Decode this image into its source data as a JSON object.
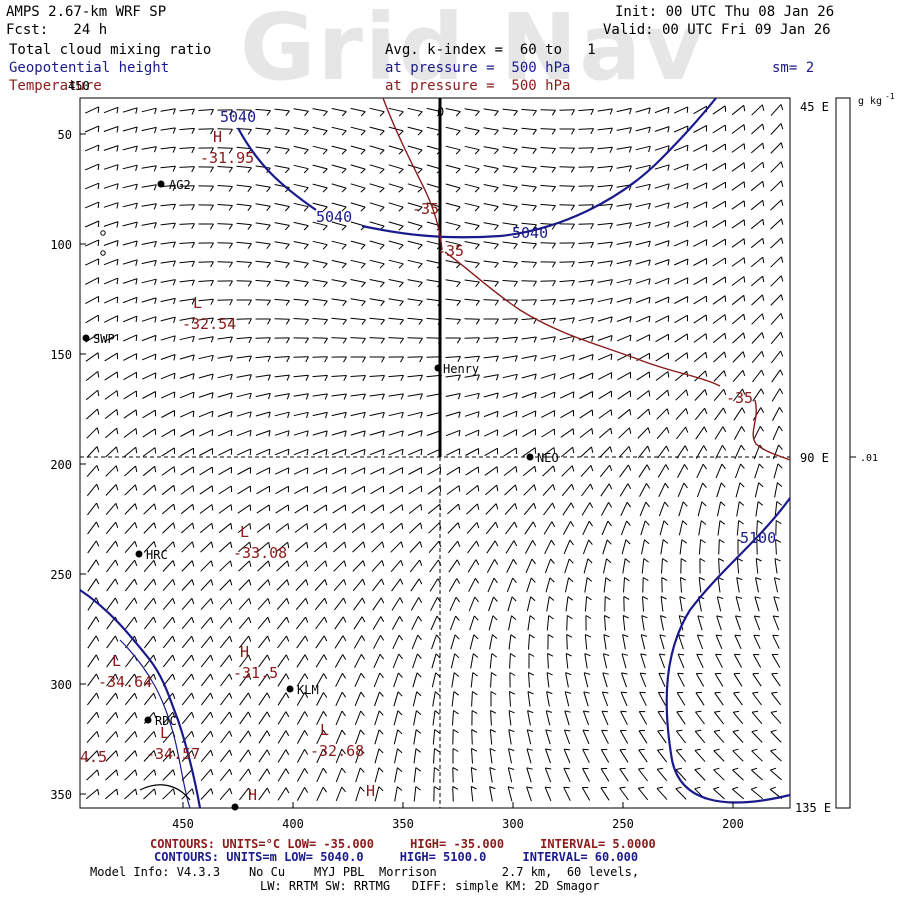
{
  "watermark": "Grid Nav",
  "header": {
    "model_title": "AMPS 2.67-km WRF SP",
    "forecast": "Fcst:   24 h",
    "init": "Init: 00 UTC Thu 08 Jan 26",
    "valid": "Valid: 00 UTC Fri 09 Jan 26",
    "field1": "Total cloud mixing ratio",
    "field2": "Geopotential height",
    "field3": "Temperature",
    "avg_k": "Avg. k-index =  60 to   1",
    "pressure1": "at pressure =  500 hPa",
    "pressure2": "at pressure =  500 hPa",
    "sm": "sm= 2"
  },
  "colors": {
    "height_contour": "#1a1a8c",
    "temperature_contour": "#8b1a1a",
    "barbs": "#000000",
    "stations": "#000000"
  },
  "axes": {
    "y_ticks": [
      "50",
      "100",
      "150",
      "200",
      "250",
      "300",
      "350"
    ],
    "x_ticks": [
      "450",
      "400",
      "350",
      "300",
      "250",
      "200"
    ],
    "right_labels": [
      "45 E",
      "90 E",
      "135 E"
    ],
    "top_label": "0"
  },
  "colorbar": {
    "unit": "g kg",
    "unit_exp": "-1",
    "value": ".01"
  },
  "stations": [
    "AG2",
    "SWP",
    "Henry",
    "NEO",
    "HRC",
    "KLM",
    "RDC"
  ],
  "height_labels": [
    "5040",
    "5040",
    "5040",
    "5100"
  ],
  "temperature_labels": [
    "-35",
    "-35",
    "-35"
  ],
  "extrema": [
    {
      "kind": "H",
      "value": "-31.95"
    },
    {
      "kind": "L",
      "value": "-32.54"
    },
    {
      "kind": "L",
      "value": "-33.08"
    },
    {
      "kind": "H",
      "value": "-31.5"
    },
    {
      "kind": "L",
      "value": "-34.64"
    },
    {
      "kind": "L",
      "value": "-34.57"
    },
    {
      "kind": "L",
      "value": "-32.68"
    },
    {
      "kind": "H",
      "value": ""
    },
    {
      "kind": "H",
      "value": ""
    }
  ],
  "edge_value": "4.5",
  "footer": {
    "contours1_label": "CONTOURS:",
    "contours1_units": "UNITS=°C",
    "contours1_low": "LOW= -35.000",
    "contours1_high": "HIGH= -35.000",
    "contours1_interval": "INTERVAL=   5.0000",
    "contours2_label": "CONTOURS:",
    "contours2_units": "UNITS=m",
    "contours2_low": "LOW=  5040.0",
    "contours2_high": "HIGH=  5100.0",
    "contours2_interval": "INTERVAL=   60.000",
    "model_info": "Model Info: V4.3.3    No Cu    MYJ PBL  Morrison         2.7 km,  60 levels,",
    "physics": "LW: RRTM SW: RRTMG   DIFF: simple KM: 2D Smagor"
  }
}
